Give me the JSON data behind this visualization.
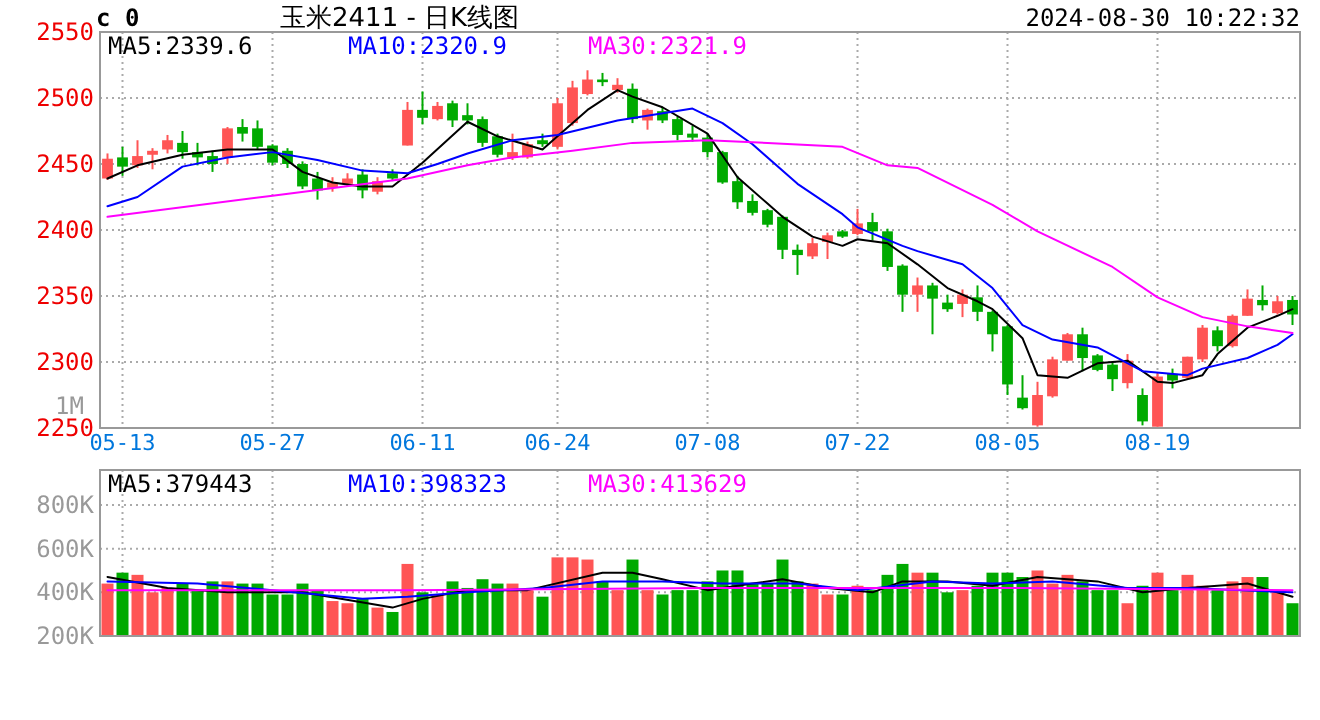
{
  "chart_data": [
    {
      "type": "candlestick",
      "title": "玉米2411 - 日K线图",
      "annotations": [
        "2024-08-30 10:22:32",
        "c 0",
        "1M"
      ],
      "categories": [
        null,
        "05-13",
        null,
        null,
        null,
        null,
        null,
        null,
        null,
        null,
        null,
        "05-27",
        null,
        null,
        null,
        null,
        null,
        null,
        null,
        null,
        null,
        "06-11",
        null,
        null,
        null,
        null,
        null,
        null,
        null,
        null,
        "06-24",
        null,
        null,
        null,
        null,
        null,
        null,
        null,
        null,
        null,
        "07-08",
        null,
        null,
        null,
        null,
        null,
        null,
        null,
        null,
        null,
        "07-22",
        null,
        null,
        null,
        null,
        null,
        null,
        null,
        null,
        null,
        "08-05",
        null,
        null,
        null,
        null,
        null,
        null,
        null,
        null,
        null,
        "08-19",
        null,
        null,
        null,
        null,
        null,
        null,
        null,
        null,
        null
      ],
      "ohlc": [
        [
          2439,
          2458,
          2438,
          2454
        ],
        [
          2455,
          2463,
          2441,
          2448
        ],
        [
          2449,
          2468,
          2447,
          2456
        ],
        [
          2457,
          2462,
          2446,
          2460
        ],
        [
          2461,
          2472,
          2458,
          2468
        ],
        [
          2466,
          2475,
          2454,
          2459
        ],
        [
          2459,
          2466,
          2449,
          2455
        ],
        [
          2456,
          2460,
          2444,
          2450
        ],
        [
          2455,
          2478,
          2450,
          2477
        ],
        [
          2478,
          2484,
          2467,
          2473
        ],
        [
          2477,
          2483,
          2461,
          2463
        ],
        [
          2464,
          2465,
          2449,
          2451
        ],
        [
          2460,
          2462,
          2447,
          2450
        ],
        [
          2450,
          2452,
          2431,
          2433
        ],
        [
          2439,
          2444,
          2423,
          2430
        ],
        [
          2432,
          2440,
          2429,
          2436
        ],
        [
          2435,
          2443,
          2433,
          2439
        ],
        [
          2442,
          2446,
          2424,
          2430
        ],
        [
          2429,
          2440,
          2427,
          2437
        ],
        [
          2443,
          2446,
          2437,
          2439
        ],
        [
          2464,
          2497,
          2464,
          2491
        ],
        [
          2491,
          2505,
          2480,
          2485
        ],
        [
          2484,
          2497,
          2483,
          2494
        ],
        [
          2496,
          2498,
          2478,
          2483
        ],
        [
          2487,
          2496,
          2480,
          2483
        ],
        [
          2484,
          2486,
          2463,
          2466
        ],
        [
          2471,
          2473,
          2455,
          2457
        ],
        [
          2455,
          2473,
          2453,
          2459
        ],
        [
          2455,
          2467,
          2454,
          2465
        ],
        [
          2468,
          2473,
          2463,
          2465
        ],
        [
          2463,
          2500,
          2461,
          2496
        ],
        [
          2481,
          2513,
          2479,
          2508
        ],
        [
          2503,
          2521,
          2502,
          2514
        ],
        [
          2514,
          2519,
          2509,
          2512
        ],
        [
          2506,
          2515,
          2504,
          2510
        ],
        [
          2507,
          2511,
          2481,
          2484
        ],
        [
          2483,
          2492,
          2476,
          2491
        ],
        [
          2490,
          2493,
          2481,
          2483
        ],
        [
          2484,
          2486,
          2468,
          2472
        ],
        [
          2473,
          2479,
          2467,
          2470
        ],
        [
          2470,
          2473,
          2455,
          2459
        ],
        [
          2459,
          2460,
          2435,
          2436
        ],
        [
          2437,
          2441,
          2416,
          2421
        ],
        [
          2422,
          2427,
          2411,
          2413
        ],
        [
          2415,
          2416,
          2402,
          2404
        ],
        [
          2410,
          2411,
          2378,
          2385
        ],
        [
          2385,
          2389,
          2366,
          2381
        ],
        [
          2380,
          2394,
          2378,
          2390
        ],
        [
          2391,
          2398,
          2378,
          2396
        ],
        [
          2399,
          2400,
          2394,
          2395
        ],
        [
          2397,
          2416,
          2396,
          2405
        ],
        [
          2406,
          2413,
          2392,
          2399
        ],
        [
          2399,
          2401,
          2369,
          2372
        ],
        [
          2373,
          2374,
          2338,
          2351
        ],
        [
          2351,
          2364,
          2338,
          2358
        ],
        [
          2358,
          2360,
          2321,
          2348
        ],
        [
          2345,
          2351,
          2338,
          2340
        ],
        [
          2344,
          2355,
          2334,
          2351
        ],
        [
          2349,
          2358,
          2331,
          2338
        ],
        [
          2338,
          2339,
          2308,
          2321
        ],
        [
          2327,
          2328,
          2275,
          2283
        ],
        [
          2273,
          2290,
          2264,
          2265
        ],
        [
          2252,
          2285,
          2251,
          2275
        ],
        [
          2274,
          2304,
          2273,
          2302
        ],
        [
          2301,
          2322,
          2301,
          2321
        ],
        [
          2321,
          2326,
          2293,
          2303
        ],
        [
          2305,
          2306,
          2293,
          2294
        ],
        [
          2298,
          2300,
          2278,
          2287
        ],
        [
          2284,
          2306,
          2280,
          2301
        ],
        [
          2275,
          2280,
          2252,
          2255
        ],
        [
          2251,
          2292,
          2251,
          2289
        ],
        [
          2291,
          2295,
          2280,
          2286
        ],
        [
          2288,
          2304,
          2287,
          2304
        ],
        [
          2302,
          2328,
          2300,
          2326
        ],
        [
          2324,
          2327,
          2308,
          2312
        ],
        [
          2312,
          2336,
          2311,
          2335
        ],
        [
          2335,
          2355,
          2335,
          2348
        ],
        [
          2347,
          2358,
          2339,
          2343
        ],
        [
          2337,
          2350,
          2336,
          2346
        ],
        [
          2347,
          2350,
          2328,
          2336
        ]
      ],
      "colors": [
        "#ff5555",
        "#00aa00",
        "#ff5555",
        "#ff5555",
        "#ff5555",
        "#00aa00",
        "#00aa00",
        "#00aa00",
        "#ff5555",
        "#00aa00",
        "#00aa00",
        "#00aa00",
        "#00aa00",
        "#00aa00",
        "#00aa00",
        "#ff5555",
        "#ff5555",
        "#00aa00",
        "#ff5555",
        "#00aa00",
        "#ff5555",
        "#00aa00",
        "#ff5555",
        "#00aa00",
        "#00aa00",
        "#00aa00",
        "#00aa00",
        "#ff5555",
        "#ff5555",
        "#00aa00",
        "#ff5555",
        "#ff5555",
        "#ff5555",
        "#00aa00",
        "#ff5555",
        "#00aa00",
        "#ff5555",
        "#00aa00",
        "#00aa00",
        "#00aa00",
        "#00aa00",
        "#00aa00",
        "#00aa00",
        "#00aa00",
        "#00aa00",
        "#00aa00",
        "#00aa00",
        "#ff5555",
        "#ff5555",
        "#00aa00",
        "#ff5555",
        "#00aa00",
        "#00aa00",
        "#00aa00",
        "#ff5555",
        "#00aa00",
        "#00aa00",
        "#ff5555",
        "#00aa00",
        "#00aa00",
        "#00aa00",
        "#00aa00",
        "#ff5555",
        "#ff5555",
        "#ff5555",
        "#00aa00",
        "#00aa00",
        "#00aa00",
        "#ff5555",
        "#00aa00",
        "#ff5555",
        "#00aa00",
        "#ff5555",
        "#ff5555",
        "#00aa00",
        "#ff5555",
        "#ff5555",
        "#00aa00",
        "#ff5555",
        "#00aa00"
      ],
      "series": [
        {
          "name": "MA5:2339.6",
          "type": "line",
          "color": "#000000",
          "values": [
            2439,
            null,
            2449,
            null,
            null,
            2457,
            null,
            null,
            2461,
            null,
            null,
            2461,
            null,
            2444,
            null,
            2436,
            null,
            2433,
            null,
            2433,
            null,
            2451,
            null,
            null,
            2482,
            null,
            2471,
            null,
            null,
            2461,
            2471,
            null,
            2491,
            null,
            2506,
            2501,
            null,
            2493,
            null,
            null,
            2473,
            null,
            2440,
            null,
            2420,
            2410,
            null,
            2395,
            null,
            2388,
            2393,
            null,
            2390,
            null,
            2374,
            null,
            2356,
            null,
            2346,
            2340,
            null,
            2318,
            2290,
            null,
            2288,
            null,
            2299,
            null,
            2301,
            null,
            2285,
            2284,
            null,
            2290,
            2306,
            null,
            2326,
            null,
            2335,
            2340
          ]
        },
        {
          "name": "MA10:2320.9",
          "type": "line",
          "color": "#0000ff",
          "values": [
            2418,
            null,
            2425,
            null,
            null,
            2448,
            null,
            null,
            2455,
            null,
            null,
            2459,
            null,
            null,
            2453,
            null,
            null,
            2445,
            null,
            null,
            2443,
            null,
            2450,
            null,
            2458,
            null,
            null,
            2468,
            null,
            null,
            2472,
            null,
            null,
            null,
            2483,
            null,
            null,
            null,
            null,
            2492,
            null,
            2481,
            null,
            2465,
            null,
            null,
            2435,
            null,
            null,
            2412,
            2402,
            null,
            null,
            2388,
            2384,
            null,
            null,
            2374,
            null,
            2356,
            null,
            2328,
            null,
            2317,
            null,
            null,
            2311,
            null,
            null,
            2293,
            null,
            null,
            2290,
            2295,
            null,
            null,
            2303,
            null,
            2313,
            2321
          ]
        },
        {
          "name": "MA30:2321.9",
          "type": "line",
          "color": "#ff00ff",
          "values": [
            2410,
            null,
            null,
            null,
            null,
            null,
            null,
            null,
            null,
            null,
            null,
            2426,
            null,
            null,
            null,
            null,
            null,
            null,
            null,
            null,
            2439,
            null,
            null,
            null,
            2449,
            null,
            null,
            2455,
            null,
            null,
            null,
            2460,
            null,
            null,
            null,
            2466,
            null,
            null,
            null,
            null,
            2468,
            null,
            null,
            null,
            2466,
            null,
            null,
            null,
            null,
            2463,
            null,
            null,
            2449,
            null,
            2447,
            null,
            null,
            null,
            null,
            2419,
            null,
            null,
            2399,
            null,
            null,
            null,
            null,
            2372,
            null,
            null,
            2349,
            null,
            null,
            2334,
            null,
            null,
            2327,
            null,
            null,
            2322
          ]
        }
      ],
      "ylim": [
        2250,
        2550
      ],
      "yticks": [
        2250,
        2300,
        2350,
        2400,
        2450,
        2500,
        2550
      ],
      "grid": true
    },
    {
      "type": "bar",
      "tick_labels": "y",
      "categories": [
        null,
        null,
        null,
        null,
        null,
        null,
        null,
        null,
        null,
        null,
        null,
        null,
        null,
        null,
        null,
        null,
        null,
        null,
        null,
        null,
        null,
        null,
        null,
        null,
        null,
        null,
        null,
        null,
        null,
        null,
        null,
        null,
        null,
        null,
        null,
        null,
        null,
        null,
        null,
        null,
        null,
        null,
        null,
        null,
        null,
        null,
        null,
        null,
        null,
        null,
        null,
        null,
        null,
        null,
        null,
        null,
        null,
        null,
        null,
        null,
        null,
        null,
        null,
        null,
        null,
        null,
        null,
        null,
        null,
        null,
        null,
        null,
        null,
        null,
        null,
        null,
        null,
        null,
        null,
        null
      ],
      "values": [
        440000,
        490000,
        480000,
        400000,
        420000,
        440000,
        410000,
        450000,
        450000,
        440000,
        440000,
        390000,
        390000,
        440000,
        410000,
        360000,
        350000,
        370000,
        330000,
        310000,
        530000,
        400000,
        390000,
        450000,
        420000,
        460000,
        440000,
        440000,
        410000,
        380000,
        560000,
        560000,
        550000,
        450000,
        410000,
        550000,
        410000,
        390000,
        410000,
        410000,
        450000,
        500000,
        500000,
        440000,
        440000,
        550000,
        450000,
        440000,
        390000,
        390000,
        430000,
        410000,
        480000,
        530000,
        490000,
        490000,
        400000,
        410000,
        430000,
        490000,
        490000,
        470000,
        500000,
        440000,
        480000,
        450000,
        410000,
        410000,
        350000,
        430000,
        490000,
        410000,
        480000,
        430000,
        410000,
        450000,
        470000,
        470000,
        410000,
        350000
      ],
      "colors": [
        "#ff5555",
        "#00aa00",
        "#ff5555",
        "#ff5555",
        "#ff5555",
        "#00aa00",
        "#00aa00",
        "#00aa00",
        "#ff5555",
        "#00aa00",
        "#00aa00",
        "#00aa00",
        "#00aa00",
        "#00aa00",
        "#00aa00",
        "#ff5555",
        "#ff5555",
        "#00aa00",
        "#ff5555",
        "#00aa00",
        "#ff5555",
        "#00aa00",
        "#ff5555",
        "#00aa00",
        "#00aa00",
        "#00aa00",
        "#00aa00",
        "#ff5555",
        "#ff5555",
        "#00aa00",
        "#ff5555",
        "#ff5555",
        "#ff5555",
        "#00aa00",
        "#ff5555",
        "#00aa00",
        "#ff5555",
        "#00aa00",
        "#00aa00",
        "#00aa00",
        "#00aa00",
        "#00aa00",
        "#00aa00",
        "#00aa00",
        "#00aa00",
        "#00aa00",
        "#00aa00",
        "#ff5555",
        "#ff5555",
        "#00aa00",
        "#ff5555",
        "#00aa00",
        "#00aa00",
        "#00aa00",
        "#ff5555",
        "#00aa00",
        "#00aa00",
        "#ff5555",
        "#00aa00",
        "#00aa00",
        "#00aa00",
        "#00aa00",
        "#ff5555",
        "#ff5555",
        "#ff5555",
        "#00aa00",
        "#00aa00",
        "#00aa00",
        "#ff5555",
        "#00aa00",
        "#ff5555",
        "#00aa00",
        "#ff5555",
        "#ff5555",
        "#00aa00",
        "#ff5555",
        "#ff5555",
        "#00aa00",
        "#ff5555",
        "#00aa00"
      ],
      "series": [
        {
          "name": "MA5:379443",
          "type": "line",
          "color": "#000000",
          "values": [
            470000,
            null,
            null,
            null,
            420000,
            null,
            null,
            null,
            400000,
            null,
            null,
            null,
            null,
            400000,
            null,
            null,
            null,
            null,
            null,
            330000,
            null,
            370000,
            null,
            null,
            410000,
            null,
            null,
            null,
            410000,
            null,
            null,
            null,
            null,
            490000,
            null,
            490000,
            null,
            460000,
            null,
            null,
            410000,
            null,
            null,
            440000,
            null,
            460000,
            null,
            null,
            420000,
            null,
            null,
            400000,
            null,
            450000,
            null,
            null,
            450000,
            null,
            null,
            430000,
            null,
            null,
            470000,
            null,
            null,
            null,
            450000,
            null,
            null,
            400000,
            null,
            null,
            420000,
            null,
            null,
            null,
            440000,
            null,
            null,
            380000
          ]
        },
        {
          "name": "MA10:398323",
          "type": "line",
          "color": "#0000ff",
          "values": [
            450000,
            null,
            null,
            null,
            null,
            null,
            440000,
            null,
            null,
            null,
            null,
            410000,
            null,
            null,
            null,
            null,
            null,
            370000,
            null,
            null,
            380000,
            null,
            null,
            null,
            400000,
            null,
            null,
            null,
            null,
            420000,
            null,
            null,
            null,
            450000,
            null,
            null,
            null,
            450000,
            null,
            null,
            null,
            440000,
            null,
            null,
            null,
            null,
            440000,
            null,
            null,
            null,
            410000,
            null,
            null,
            null,
            null,
            450000,
            null,
            null,
            null,
            440000,
            null,
            null,
            null,
            450000,
            null,
            null,
            null,
            null,
            420000,
            null,
            null,
            null,
            420000,
            null,
            null,
            null,
            null,
            null,
            null,
            400000
          ]
        },
        {
          "name": "MA30:413629",
          "type": "line",
          "color": "#ff00ff",
          "values": [
            410000,
            null,
            null,
            null,
            null,
            null,
            null,
            null,
            null,
            null,
            null,
            null,
            null,
            null,
            null,
            null,
            null,
            null,
            null,
            null,
            410000,
            null,
            null,
            null,
            null,
            null,
            null,
            null,
            null,
            null,
            null,
            null,
            null,
            null,
            null,
            null,
            null,
            null,
            null,
            null,
            420000,
            null,
            null,
            null,
            null,
            null,
            null,
            null,
            null,
            null,
            null,
            null,
            null,
            null,
            null,
            null,
            null,
            null,
            null,
            null,
            420000,
            null,
            null,
            null,
            null,
            null,
            null,
            null,
            null,
            null,
            null,
            null,
            null,
            null,
            null,
            null,
            null,
            null,
            null,
            410000
          ]
        }
      ],
      "ylim": [
        200000,
        960000
      ],
      "yticks": [
        {
          "value": 200000,
          "label": "200K"
        },
        {
          "value": 400000,
          "label": "400K"
        },
        {
          "value": 600000,
          "label": "600K"
        },
        {
          "value": 800000,
          "label": "800K"
        }
      ],
      "grid": true
    }
  ]
}
